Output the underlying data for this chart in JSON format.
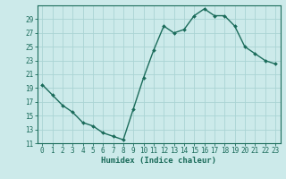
{
  "xlabel": "Humidex (Indice chaleur)",
  "ylabel": "",
  "x_values": [
    0,
    1,
    2,
    3,
    4,
    5,
    6,
    7,
    8,
    9,
    10,
    11,
    12,
    13,
    14,
    15,
    16,
    17,
    18,
    19,
    20,
    21,
    22,
    23
  ],
  "y_values": [
    19.5,
    18.0,
    16.5,
    15.5,
    14.0,
    13.5,
    12.5,
    12.0,
    11.5,
    16.0,
    20.5,
    24.5,
    28.0,
    27.0,
    27.5,
    29.5,
    30.5,
    29.5,
    29.5,
    28.0,
    25.0,
    24.0,
    23.0,
    22.5
  ],
  "line_color": "#1a6b5a",
  "marker": "D",
  "marker_size": 2.0,
  "line_width": 1.0,
  "bg_color": "#cceaea",
  "grid_color": "#aad4d4",
  "ylim": [
    11,
    31
  ],
  "xlim": [
    -0.5,
    23.5
  ],
  "yticks": [
    11,
    13,
    15,
    17,
    19,
    21,
    23,
    25,
    27,
    29
  ],
  "xticks": [
    0,
    1,
    2,
    3,
    4,
    5,
    6,
    7,
    8,
    9,
    10,
    11,
    12,
    13,
    14,
    15,
    16,
    17,
    18,
    19,
    20,
    21,
    22,
    23
  ],
  "xtick_labels": [
    "0",
    "1",
    "2",
    "3",
    "4",
    "5",
    "6",
    "7",
    "8",
    "9",
    "10",
    "11",
    "12",
    "13",
    "14",
    "15",
    "16",
    "17",
    "18",
    "19",
    "20",
    "21",
    "22",
    "23"
  ],
  "tick_fontsize": 5.5,
  "xlabel_fontsize": 6.5,
  "spine_color": "#1a6b5a"
}
